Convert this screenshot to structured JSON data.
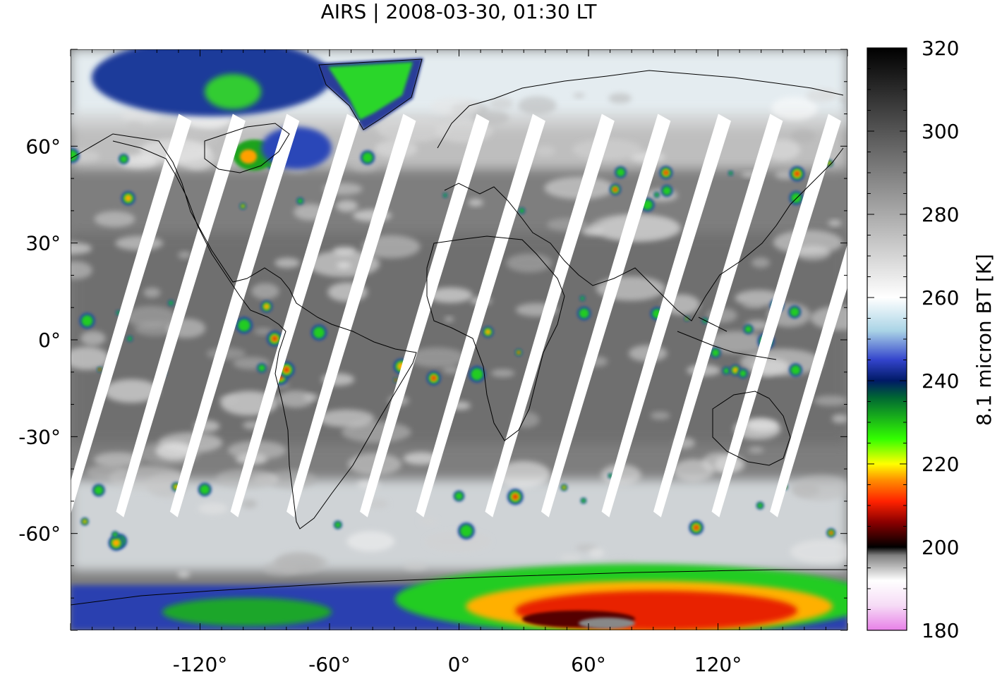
{
  "title": "AIRS | 2008-03-30, 01:30 LT",
  "x_ticks": [
    {
      "label": "-120°",
      "value": -120
    },
    {
      "label": "-60°",
      "value": -60
    },
    {
      "label": "0°",
      "value": 0
    },
    {
      "label": "60°",
      "value": 60
    },
    {
      "label": "120°",
      "value": 120
    }
  ],
  "y_ticks": [
    {
      "label": "60°",
      "value": 60
    },
    {
      "label": "30°",
      "value": 30
    },
    {
      "label": "0°",
      "value": 0
    },
    {
      "label": "-30°",
      "value": -30
    },
    {
      "label": "-60°",
      "value": -60
    }
  ],
  "colorbar": {
    "label": "8.1 micron BT [K]",
    "ticks": [
      {
        "label": "320",
        "value": 320
      },
      {
        "label": "300",
        "value": 300
      },
      {
        "label": "280",
        "value": 280
      },
      {
        "label": "260",
        "value": 260
      },
      {
        "label": "240",
        "value": 240
      },
      {
        "label": "220",
        "value": 220
      },
      {
        "label": "200",
        "value": 200
      },
      {
        "label": "180",
        "value": 180
      }
    ],
    "range": [
      180,
      320
    ],
    "stops": [
      {
        "value": 180,
        "color": "#e880e8"
      },
      {
        "value": 186,
        "color": "#f6dcf6"
      },
      {
        "value": 192,
        "color": "#ffffff"
      },
      {
        "value": 198,
        "color": "#808080"
      },
      {
        "value": 200,
        "color": "#000000"
      },
      {
        "value": 206,
        "color": "#8b0000"
      },
      {
        "value": 211,
        "color": "#ff2200"
      },
      {
        "value": 216,
        "color": "#ff8c00"
      },
      {
        "value": 220,
        "color": "#ffff00"
      },
      {
        "value": 226,
        "color": "#33ff00"
      },
      {
        "value": 236,
        "color": "#006633"
      },
      {
        "value": 240,
        "color": "#001a66"
      },
      {
        "value": 245,
        "color": "#3344cc"
      },
      {
        "value": 252,
        "color": "#aad4e6"
      },
      {
        "value": 260,
        "color": "#ffffff"
      },
      {
        "value": 300,
        "color": "#555555"
      },
      {
        "value": 320,
        "color": "#000000"
      }
    ]
  },
  "map": {
    "lon_range": [
      -180,
      180
    ],
    "lat_range": [
      -90,
      90
    ],
    "field": "brightness temperature",
    "swath_gap_longitudes": [
      -156,
      -131,
      -106,
      -78,
      -52,
      -18,
      8,
      40,
      66,
      94,
      118,
      145,
      172
    ]
  }
}
